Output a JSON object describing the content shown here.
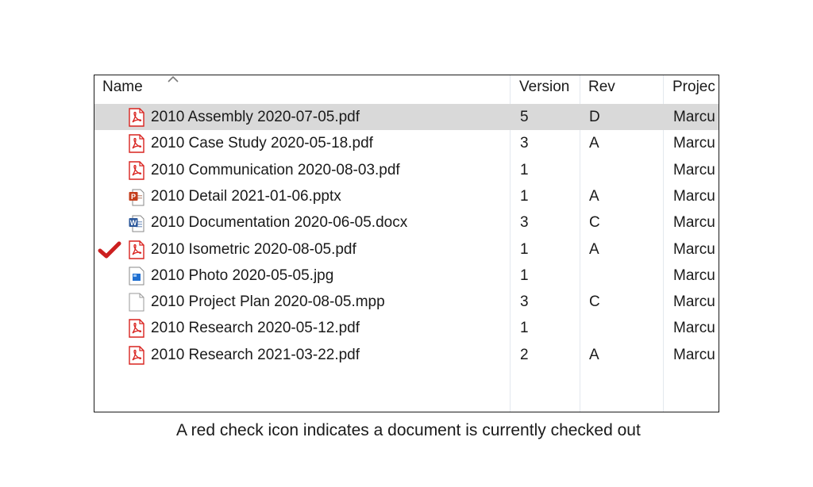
{
  "columns": {
    "name": "Name",
    "version": "Version",
    "rev": "Rev",
    "project": "Projec"
  },
  "rows": [
    {
      "name": "2010 Assembly 2020-07-05.pdf",
      "type": "pdf",
      "version": "5",
      "rev": "D",
      "project": "Marcu",
      "selected": true,
      "checked_out": false
    },
    {
      "name": "2010 Case Study 2020-05-18.pdf",
      "type": "pdf",
      "version": "3",
      "rev": "A",
      "project": "Marcu",
      "selected": false,
      "checked_out": false
    },
    {
      "name": "2010 Communication 2020-08-03.pdf",
      "type": "pdf",
      "version": "1",
      "rev": "",
      "project": "Marcu",
      "selected": false,
      "checked_out": false
    },
    {
      "name": "2010 Detail 2021-01-06.pptx",
      "type": "pptx",
      "version": "1",
      "rev": "A",
      "project": "Marcu",
      "selected": false,
      "checked_out": false
    },
    {
      "name": "2010 Documentation 2020-06-05.docx",
      "type": "docx",
      "version": "3",
      "rev": "C",
      "project": "Marcu",
      "selected": false,
      "checked_out": false
    },
    {
      "name": "2010 Isometric 2020-08-05.pdf",
      "type": "pdf",
      "version": "1",
      "rev": "A",
      "project": "Marcu",
      "selected": false,
      "checked_out": true
    },
    {
      "name": "2010 Photo 2020-05-05.jpg",
      "type": "jpg",
      "version": "1",
      "rev": "",
      "project": "Marcu",
      "selected": false,
      "checked_out": false
    },
    {
      "name": "2010 Project Plan 2020-08-05.mpp",
      "type": "mpp",
      "version": "3",
      "rev": "C",
      "project": "Marcu",
      "selected": false,
      "checked_out": false
    },
    {
      "name": "2010 Research 2020-05-12.pdf",
      "type": "pdf",
      "version": "1",
      "rev": "",
      "project": "Marcu",
      "selected": false,
      "checked_out": false
    },
    {
      "name": "2010 Research 2021-03-22.pdf",
      "type": "pdf",
      "version": "2",
      "rev": "A",
      "project": "Marcu",
      "selected": false,
      "checked_out": false
    }
  ],
  "caption": "A red check icon indicates a document is currently checked out",
  "colors": {
    "selected_row": "#d9d9d9",
    "pdf_red": "#d9231f",
    "pptx_orange": "#c43e1c",
    "docx_blue": "#2b579a",
    "check_red": "#cc1f1f"
  }
}
